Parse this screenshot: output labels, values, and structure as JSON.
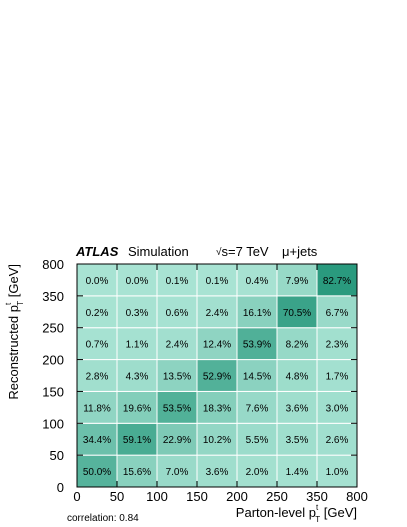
{
  "chart_data": {
    "type": "heatmap",
    "header": {
      "brand": "ATLAS",
      "tag": "Simulation",
      "energy_sqrt": "√",
      "energy_rest": "s=7 TeV",
      "channel": "μ+jets"
    },
    "xlabel": "Parton-level p",
    "xlabel_sub": "T",
    "xlabel_sup": "t",
    "xlabel_unit": " [GeV]",
    "ylabel": "Reconstructed p",
    "ylabel_sub": "T",
    "ylabel_sup": "t",
    "ylabel_unit": " [GeV]",
    "x_ticks": [
      "0",
      "50",
      "100",
      "150",
      "200",
      "250",
      "350",
      "800"
    ],
    "y_ticks": [
      "0",
      "50",
      "100",
      "150",
      "200",
      "250",
      "350",
      "800"
    ],
    "x_bins": [
      "0-50",
      "50-100",
      "100-150",
      "150-200",
      "200-250",
      "250-350",
      "350-800"
    ],
    "y_bins": [
      "0-50",
      "50-100",
      "100-150",
      "150-200",
      "200-250",
      "250-350",
      "350-800"
    ],
    "cell_labels": [
      [
        "50.0%",
        "15.6%",
        "7.0%",
        "3.6%",
        "2.0%",
        "1.4%",
        "1.0%"
      ],
      [
        "34.4%",
        "59.1%",
        "22.9%",
        "10.2%",
        "5.5%",
        "3.5%",
        "2.6%"
      ],
      [
        "11.8%",
        "19.6%",
        "53.5%",
        "18.3%",
        "7.6%",
        "3.6%",
        "3.0%"
      ],
      [
        "2.8%",
        "4.3%",
        "13.5%",
        "52.9%",
        "14.5%",
        "4.8%",
        "1.7%"
      ],
      [
        "0.7%",
        "1.1%",
        "2.4%",
        "12.4%",
        "53.9%",
        "8.2%",
        "2.3%"
      ],
      [
        "0.2%",
        "0.3%",
        "0.6%",
        "2.4%",
        "16.1%",
        "70.5%",
        "6.7%"
      ],
      [
        "0.0%",
        "0.0%",
        "0.1%",
        "0.1%",
        "0.4%",
        "7.9%",
        "82.7%"
      ]
    ],
    "values": [
      [
        50.0,
        15.6,
        7.0,
        3.6,
        2.0,
        1.4,
        1.0
      ],
      [
        34.4,
        59.1,
        22.9,
        10.2,
        5.5,
        3.5,
        2.6
      ],
      [
        11.8,
        19.6,
        53.5,
        18.3,
        7.6,
        3.6,
        3.0
      ],
      [
        2.8,
        4.3,
        13.5,
        52.9,
        14.5,
        4.8,
        1.7
      ],
      [
        0.7,
        1.1,
        2.4,
        12.4,
        53.9,
        8.2,
        2.3
      ],
      [
        0.2,
        0.3,
        0.6,
        2.4,
        16.1,
        70.5,
        6.7
      ],
      [
        0.0,
        0.0,
        0.1,
        0.1,
        0.4,
        7.9,
        82.7
      ]
    ],
    "colors": {
      "low": "#a8e3d3",
      "high": "#2a9a7e",
      "grid": "#ffffff"
    },
    "footnote": "correlation: 0.84"
  }
}
